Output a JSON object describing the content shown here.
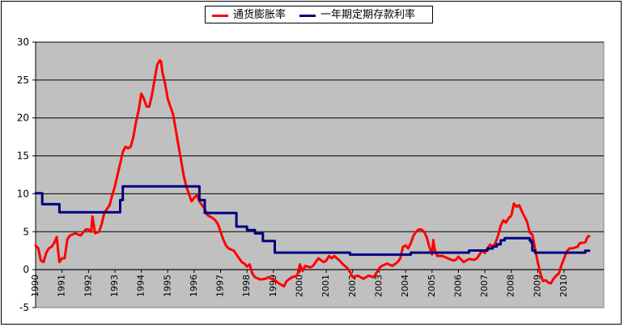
{
  "chart_data": {
    "type": "line",
    "xlim": [
      1990,
      2011.5
    ],
    "ylim": [
      -5,
      30
    ],
    "yticks": [
      -5,
      0,
      5,
      10,
      15,
      20,
      25,
      30
    ],
    "x_tick_labels": [
      "1990",
      "1991",
      "1992",
      "1993",
      "1994",
      "1995",
      "1996",
      "1997",
      "1998",
      "1999",
      "2000",
      "2001",
      "2002",
      "2003",
      "2004",
      "2005",
      "2006",
      "2007",
      "2008",
      "2009",
      "2010"
    ],
    "plot_background": "#c0c0c0",
    "grid": true,
    "legend_position": "top-center",
    "series": [
      {
        "name": "通货膨胀率",
        "color": "#ff0000",
        "points": [
          [
            1990.0,
            3.2
          ],
          [
            1990.1,
            2.8
          ],
          [
            1990.2,
            1.2
          ],
          [
            1990.3,
            1.0
          ],
          [
            1990.4,
            2.2
          ],
          [
            1990.5,
            2.8
          ],
          [
            1990.6,
            3.0
          ],
          [
            1990.7,
            3.5
          ],
          [
            1990.8,
            4.3
          ],
          [
            1990.85,
            2.5
          ],
          [
            1990.9,
            1.0
          ],
          [
            1991.0,
            1.5
          ],
          [
            1991.1,
            1.5
          ],
          [
            1991.2,
            4.0
          ],
          [
            1991.3,
            4.5
          ],
          [
            1991.5,
            4.8
          ],
          [
            1991.7,
            4.5
          ],
          [
            1991.9,
            5.3
          ],
          [
            1992.0,
            5.3
          ],
          [
            1992.1,
            5.0
          ],
          [
            1992.15,
            7.0
          ],
          [
            1992.25,
            4.8
          ],
          [
            1992.4,
            5.0
          ],
          [
            1992.5,
            6.0
          ],
          [
            1992.6,
            7.5
          ],
          [
            1992.8,
            8.5
          ],
          [
            1992.9,
            9.8
          ],
          [
            1993.0,
            11.0
          ],
          [
            1993.1,
            12.5
          ],
          [
            1993.2,
            14.0
          ],
          [
            1993.3,
            15.5
          ],
          [
            1993.4,
            16.2
          ],
          [
            1993.5,
            16.0
          ],
          [
            1993.6,
            16.2
          ],
          [
            1993.7,
            17.5
          ],
          [
            1993.8,
            19.5
          ],
          [
            1993.9,
            21.0
          ],
          [
            1994.0,
            23.2
          ],
          [
            1994.1,
            22.5
          ],
          [
            1994.2,
            21.5
          ],
          [
            1994.3,
            21.5
          ],
          [
            1994.4,
            23.0
          ],
          [
            1994.5,
            25.0
          ],
          [
            1994.6,
            27.0
          ],
          [
            1994.7,
            27.6
          ],
          [
            1994.75,
            27.4
          ],
          [
            1994.8,
            26.0
          ],
          [
            1994.9,
            24.5
          ],
          [
            1995.0,
            22.5
          ],
          [
            1995.1,
            21.5
          ],
          [
            1995.2,
            20.5
          ],
          [
            1995.3,
            18.5
          ],
          [
            1995.4,
            16.5
          ],
          [
            1995.5,
            14.5
          ],
          [
            1995.6,
            12.5
          ],
          [
            1995.7,
            11.0
          ],
          [
            1995.8,
            10.0
          ],
          [
            1995.9,
            9.0
          ],
          [
            1996.0,
            9.5
          ],
          [
            1996.1,
            9.8
          ],
          [
            1996.2,
            9.0
          ],
          [
            1996.3,
            8.5
          ],
          [
            1996.4,
            8.0
          ],
          [
            1996.5,
            7.2
          ],
          [
            1996.6,
            7.0
          ],
          [
            1996.7,
            6.8
          ],
          [
            1996.8,
            6.5
          ],
          [
            1996.9,
            6.0
          ],
          [
            1997.0,
            5.0
          ],
          [
            1997.1,
            4.0
          ],
          [
            1997.2,
            3.2
          ],
          [
            1997.3,
            2.8
          ],
          [
            1997.5,
            2.5
          ],
          [
            1997.6,
            2.0
          ],
          [
            1997.7,
            1.5
          ],
          [
            1997.8,
            1.0
          ],
          [
            1997.9,
            0.8
          ],
          [
            1998.0,
            0.4
          ],
          [
            1998.1,
            0.7
          ],
          [
            1998.2,
            -0.5
          ],
          [
            1998.3,
            -1.0
          ],
          [
            1998.5,
            -1.3
          ],
          [
            1998.7,
            -1.2
          ],
          [
            1998.8,
            -1.0
          ],
          [
            1999.0,
            -1.3
          ],
          [
            1999.1,
            -1.5
          ],
          [
            1999.2,
            -1.8
          ],
          [
            1999.4,
            -2.2
          ],
          [
            1999.5,
            -1.5
          ],
          [
            1999.7,
            -1.0
          ],
          [
            1999.9,
            -0.8
          ],
          [
            2000.0,
            0.7
          ],
          [
            2000.1,
            -0.2
          ],
          [
            2000.2,
            0.5
          ],
          [
            2000.4,
            0.3
          ],
          [
            2000.5,
            0.5
          ],
          [
            2000.7,
            1.5
          ],
          [
            2000.9,
            1.0
          ],
          [
            2001.0,
            1.2
          ],
          [
            2001.1,
            1.8
          ],
          [
            2001.2,
            1.5
          ],
          [
            2001.3,
            1.8
          ],
          [
            2001.4,
            1.5
          ],
          [
            2001.5,
            1.2
          ],
          [
            2001.6,
            0.8
          ],
          [
            2001.7,
            0.5
          ],
          [
            2001.8,
            0.2
          ],
          [
            2001.9,
            -0.3
          ],
          [
            2002.0,
            -1.0
          ],
          [
            2002.2,
            -0.8
          ],
          [
            2002.4,
            -1.2
          ],
          [
            2002.6,
            -0.8
          ],
          [
            2002.8,
            -1.0
          ],
          [
            2003.0,
            0.2
          ],
          [
            2003.1,
            0.5
          ],
          [
            2003.3,
            0.8
          ],
          [
            2003.5,
            0.5
          ],
          [
            2003.7,
            1.0
          ],
          [
            2003.8,
            1.5
          ],
          [
            2003.9,
            3.0
          ],
          [
            2004.0,
            3.2
          ],
          [
            2004.1,
            2.8
          ],
          [
            2004.2,
            3.5
          ],
          [
            2004.3,
            4.5
          ],
          [
            2004.4,
            5.0
          ],
          [
            2004.5,
            5.3
          ],
          [
            2004.6,
            5.3
          ],
          [
            2004.7,
            5.0
          ],
          [
            2004.8,
            4.3
          ],
          [
            2004.9,
            3.0
          ],
          [
            2005.0,
            2.0
          ],
          [
            2005.05,
            3.9
          ],
          [
            2005.1,
            2.7
          ],
          [
            2005.2,
            1.8
          ],
          [
            2005.4,
            1.8
          ],
          [
            2005.6,
            1.5
          ],
          [
            2005.8,
            1.2
          ],
          [
            2005.9,
            1.3
          ],
          [
            2006.0,
            1.7
          ],
          [
            2006.2,
            1.0
          ],
          [
            2006.4,
            1.4
          ],
          [
            2006.6,
            1.3
          ],
          [
            2006.7,
            1.5
          ],
          [
            2006.8,
            2.0
          ],
          [
            2006.9,
            2.5
          ],
          [
            2007.0,
            2.2
          ],
          [
            2007.1,
            2.8
          ],
          [
            2007.2,
            3.3
          ],
          [
            2007.3,
            3.0
          ],
          [
            2007.4,
            3.5
          ],
          [
            2007.5,
            4.5
          ],
          [
            2007.6,
            5.8
          ],
          [
            2007.7,
            6.5
          ],
          [
            2007.8,
            6.2
          ],
          [
            2007.9,
            6.8
          ],
          [
            2008.0,
            7.1
          ],
          [
            2008.1,
            8.7
          ],
          [
            2008.2,
            8.3
          ],
          [
            2008.3,
            8.5
          ],
          [
            2008.4,
            7.7
          ],
          [
            2008.5,
            7.0
          ],
          [
            2008.6,
            6.3
          ],
          [
            2008.7,
            4.9
          ],
          [
            2008.8,
            4.6
          ],
          [
            2008.9,
            2.8
          ],
          [
            2009.0,
            1.0
          ],
          [
            2009.1,
            -0.5
          ],
          [
            2009.2,
            -1.5
          ],
          [
            2009.3,
            -1.4
          ],
          [
            2009.4,
            -1.7
          ],
          [
            2009.5,
            -1.8
          ],
          [
            2009.6,
            -1.2
          ],
          [
            2009.7,
            -0.8
          ],
          [
            2009.8,
            -0.5
          ],
          [
            2009.9,
            0.6
          ],
          [
            2010.0,
            1.5
          ],
          [
            2010.1,
            2.4
          ],
          [
            2010.2,
            2.8
          ],
          [
            2010.3,
            2.8
          ],
          [
            2010.5,
            3.0
          ],
          [
            2010.6,
            3.5
          ],
          [
            2010.8,
            3.6
          ],
          [
            2010.9,
            4.4
          ],
          [
            2010.95,
            4.4
          ]
        ]
      },
      {
        "name": "一年期定期存款利率",
        "color": "#000080",
        "points": [
          [
            1990.0,
            10.08
          ],
          [
            1990.25,
            10.08
          ],
          [
            1990.25,
            8.64
          ],
          [
            1990.9,
            8.64
          ],
          [
            1990.9,
            7.56
          ],
          [
            1993.2,
            7.56
          ],
          [
            1993.2,
            9.18
          ],
          [
            1993.3,
            9.18
          ],
          [
            1993.3,
            10.98
          ],
          [
            1996.2,
            10.98
          ],
          [
            1996.2,
            9.18
          ],
          [
            1996.4,
            9.18
          ],
          [
            1996.4,
            7.47
          ],
          [
            1997.6,
            7.47
          ],
          [
            1997.6,
            5.67
          ],
          [
            1998.0,
            5.67
          ],
          [
            1998.0,
            5.22
          ],
          [
            1998.3,
            5.22
          ],
          [
            1998.3,
            4.77
          ],
          [
            1998.6,
            4.77
          ],
          [
            1998.6,
            3.78
          ],
          [
            1999.05,
            3.78
          ],
          [
            1999.05,
            2.25
          ],
          [
            2001.9,
            2.25
          ],
          [
            2001.9,
            1.98
          ],
          [
            2004.2,
            1.98
          ],
          [
            2004.2,
            2.25
          ],
          [
            2006.0,
            2.25
          ],
          [
            2006.4,
            2.25
          ],
          [
            2006.4,
            2.52
          ],
          [
            2007.1,
            2.52
          ],
          [
            2007.1,
            2.79
          ],
          [
            2007.3,
            2.79
          ],
          [
            2007.3,
            3.06
          ],
          [
            2007.45,
            3.06
          ],
          [
            2007.45,
            3.33
          ],
          [
            2007.6,
            3.33
          ],
          [
            2007.6,
            3.87
          ],
          [
            2007.75,
            3.87
          ],
          [
            2007.75,
            4.14
          ],
          [
            2008.7,
            4.14
          ],
          [
            2008.7,
            3.87
          ],
          [
            2008.75,
            3.87
          ],
          [
            2008.75,
            3.6
          ],
          [
            2008.8,
            3.6
          ],
          [
            2008.8,
            2.52
          ],
          [
            2008.9,
            2.52
          ],
          [
            2008.9,
            2.25
          ],
          [
            2010.8,
            2.25
          ],
          [
            2010.8,
            2.5
          ],
          [
            2010.95,
            2.5
          ]
        ]
      }
    ]
  }
}
